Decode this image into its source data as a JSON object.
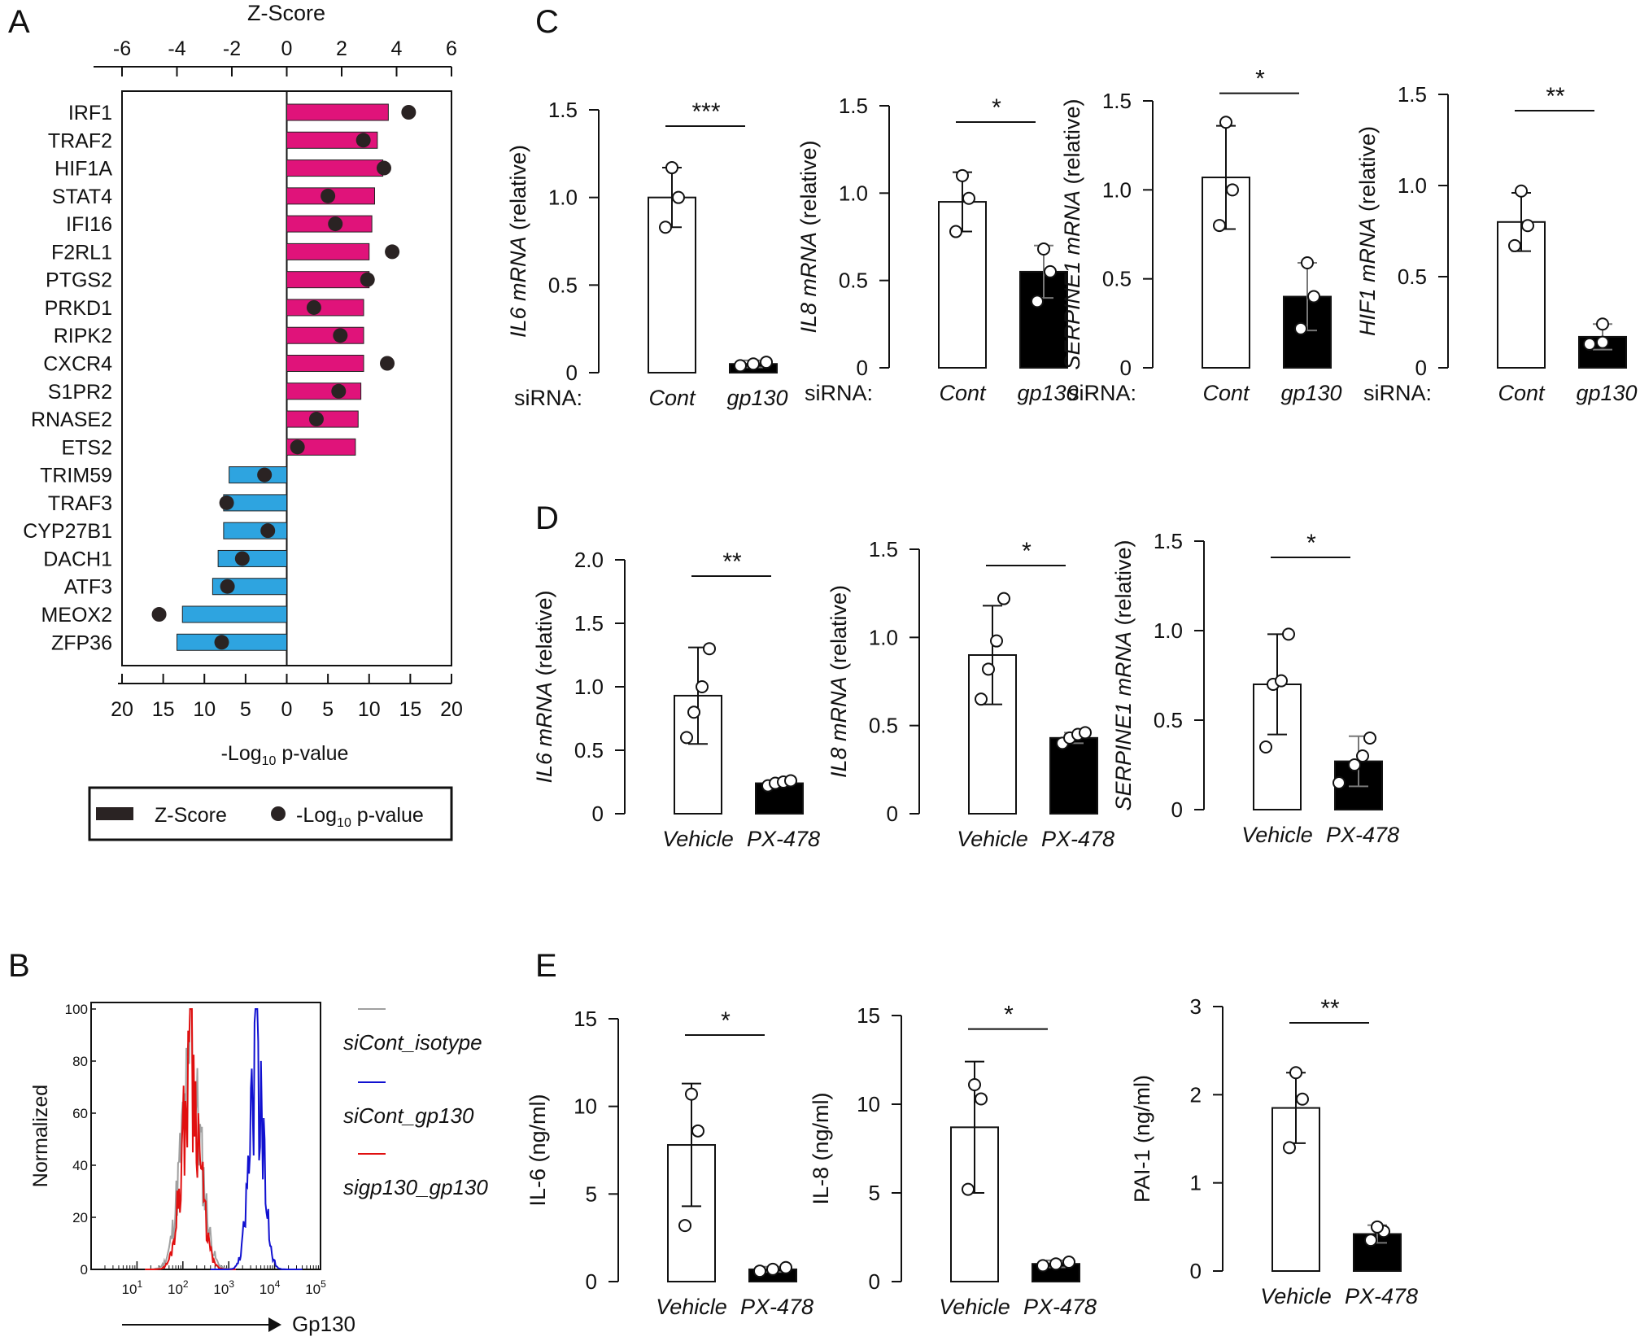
{
  "panels": {
    "A": "A",
    "B": "B",
    "C": "C",
    "D": "D",
    "E": "E"
  },
  "chart_data": [
    {
      "id": "A",
      "type": "bar",
      "orientation": "horizontal",
      "top_axis_title": "Z-Score",
      "top_ticks": [
        "-6",
        "-4",
        "-2",
        "0",
        "2",
        "4",
        "6"
      ],
      "bottom_ticks": [
        "20",
        "15",
        "10",
        "5",
        "0",
        "5",
        "10",
        "15",
        "20"
      ],
      "xlabel_main": "-Log",
      "xlabel_sub": "10",
      "xlabel_tail": " p-value",
      "legend": {
        "bar_label": "Z-Score",
        "dot_label_main": "-Log",
        "dot_label_sub": "10",
        "dot_label_tail": " p-value",
        "placement": "bottom"
      },
      "colors": {
        "positive": "#e0137a",
        "negative": "#2ea4e0",
        "dot": "#2a2323"
      },
      "categories": [
        "IRF1",
        "TRAF2",
        "HIF1A",
        "STAT4",
        "IFI16",
        "F2RL1",
        "PTGS2",
        "PRKD1",
        "RIPK2",
        "CXCR4",
        "S1PR2",
        "RNASE2",
        "ETS2",
        "TRIM59",
        "TRAF3",
        "CYP27B1",
        "DACH1",
        "ATF3",
        "MEOX2",
        "ZFP36"
      ],
      "series": [
        {
          "name": "Z-Score",
          "values": [
            3.7,
            3.3,
            3.5,
            3.2,
            3.1,
            3.0,
            3.0,
            2.8,
            2.8,
            2.8,
            2.7,
            2.6,
            2.5,
            -2.1,
            -2.3,
            -2.3,
            -2.5,
            -2.7,
            -3.8,
            -4.0
          ]
        },
        {
          "name": "-Log10 p-value",
          "values": [
            14.8,
            9.3,
            11.8,
            5.0,
            5.9,
            12.8,
            9.8,
            3.3,
            6.5,
            12.2,
            6.3,
            3.6,
            1.3,
            2.7,
            7.3,
            2.3,
            5.4,
            7.2,
            15.5,
            7.9
          ]
        }
      ],
      "zlim": [
        -6,
        6
      ],
      "plim": [
        -20,
        20
      ]
    },
    {
      "id": "B",
      "type": "line",
      "ylabel": "Normalized",
      "xlabel": "Gp130",
      "y_ticks": [
        "100",
        "80",
        "60",
        "40",
        "20",
        "0"
      ],
      "x_ticks": [
        {
          "base": "10",
          "exp": "1"
        },
        {
          "base": "10",
          "exp": "2"
        },
        {
          "base": "10",
          "exp": "3"
        },
        {
          "base": "10",
          "exp": "4"
        },
        {
          "base": "10",
          "exp": "5"
        }
      ],
      "x_scale": "log",
      "legend": [
        {
          "name": "siCont_isotype",
          "color": "#a0a0a0"
        },
        {
          "name": "siCont_gp130",
          "color": "#1010d0"
        },
        {
          "name": "sigp130_gp130",
          "color": "#e01010"
        }
      ],
      "series": [
        {
          "name": "siCont_isotype",
          "peak_x": 150,
          "peak_y": 100
        },
        {
          "name": "siCont_gp130",
          "peak_x": 4000,
          "peak_y": 100
        },
        {
          "name": "sigp130_gp130",
          "peak_x": 150,
          "peak_y": 100
        }
      ],
      "xlim": [
        1,
        100000
      ],
      "ylim": [
        0,
        100
      ]
    },
    {
      "id": "C1",
      "type": "bar",
      "ylabel": "IL6 mRNA (relative)",
      "ylabel_italic": "IL6 mRNA",
      "ylabel_tail": " (relative)",
      "group_label": "siRNA:",
      "categories": [
        "Cont",
        "gp130"
      ],
      "cat_italic": true,
      "values": [
        1.0,
        0.05
      ],
      "errors": [
        0.17,
        0.02
      ],
      "points": [
        [
          0.83,
          1.0,
          1.17
        ],
        [
          0.04,
          0.05,
          0.06
        ]
      ],
      "y_ticks": [
        "0",
        "0.5",
        "1.0",
        "1.5"
      ],
      "ylim": [
        0,
        1.5
      ],
      "significance": "***"
    },
    {
      "id": "C2",
      "type": "bar",
      "ylabel": "IL8 mRNA (relative)",
      "ylabel_italic": "IL8 mRNA",
      "ylabel_tail": " (relative)",
      "group_label": "siRNA:",
      "categories": [
        "Cont",
        "gp130"
      ],
      "cat_italic": true,
      "values": [
        0.95,
        0.55
      ],
      "errors": [
        0.17,
        0.15
      ],
      "points": [
        [
          0.78,
          0.97,
          1.1
        ],
        [
          0.38,
          0.55,
          0.68
        ]
      ],
      "y_ticks": [
        "0",
        "0.5",
        "1.0",
        "1.5"
      ],
      "ylim": [
        0,
        1.5
      ],
      "significance": "*"
    },
    {
      "id": "C3",
      "type": "bar",
      "ylabel": "SERPINE1 mRNA (relative)",
      "ylabel_italic": "SERPINE1 mRNA",
      "ylabel_tail": " (relative)",
      "group_label": "siRNA:",
      "categories": [
        "Cont",
        "gp130"
      ],
      "cat_italic": true,
      "values": [
        1.07,
        0.4
      ],
      "errors": [
        0.29,
        0.19
      ],
      "points": [
        [
          0.8,
          1.0,
          1.38
        ],
        [
          0.22,
          0.4,
          0.59
        ]
      ],
      "y_ticks": [
        "0",
        "0.5",
        "1.0",
        "1.5"
      ],
      "ylim": [
        0,
        1.5
      ],
      "significance": "*"
    },
    {
      "id": "C4",
      "type": "bar",
      "ylabel": "HIF1 mRNA (relative)",
      "ylabel_italic": "HIF1 mRNA",
      "ylabel_tail": " (relative)",
      "group_label": "siRNA:",
      "categories": [
        "Cont",
        "gp130"
      ],
      "cat_italic": true,
      "values": [
        0.8,
        0.17
      ],
      "errors": [
        0.16,
        0.07
      ],
      "points": [
        [
          0.67,
          0.78,
          0.97
        ],
        [
          0.13,
          0.14,
          0.24
        ]
      ],
      "y_ticks": [
        "0",
        "0.5",
        "1.0",
        "1.5"
      ],
      "ylim": [
        0,
        1.5
      ],
      "significance": "**"
    },
    {
      "id": "D1",
      "type": "bar",
      "ylabel": "IL6 mRNA (relative)",
      "ylabel_italic": "IL6 mRNA",
      "ylabel_tail": " (relative)",
      "categories": [
        "Vehicle",
        "PX-478"
      ],
      "cat_italic": true,
      "values": [
        0.93,
        0.24
      ],
      "errors": [
        0.38,
        0.02
      ],
      "points": [
        [
          0.6,
          0.8,
          1.0,
          1.3
        ],
        [
          0.22,
          0.24,
          0.25,
          0.26
        ]
      ],
      "y_ticks": [
        "0",
        "0.5",
        "1.0",
        "1.5",
        "2.0"
      ],
      "ylim": [
        0,
        2.0
      ],
      "significance": "**"
    },
    {
      "id": "D2",
      "type": "bar",
      "ylabel": "IL8 mRNA (relative)",
      "ylabel_italic": "IL8 mRNA",
      "ylabel_tail": " (relative)",
      "categories": [
        "Vehicle",
        "PX-478"
      ],
      "cat_italic": true,
      "values": [
        0.9,
        0.43
      ],
      "errors": [
        0.28,
        0.03
      ],
      "points": [
        [
          0.65,
          0.82,
          0.98,
          1.22
        ],
        [
          0.4,
          0.43,
          0.45,
          0.46
        ]
      ],
      "y_ticks": [
        "0",
        "0.5",
        "1.0",
        "1.5"
      ],
      "ylim": [
        0,
        1.5
      ],
      "significance": "*"
    },
    {
      "id": "D3",
      "type": "bar",
      "ylabel": "SERPINE1 mRNA (relative)",
      "ylabel_italic": "SERPINE1 mRNA",
      "ylabel_tail": " (relative)",
      "categories": [
        "Vehicle",
        "PX-478"
      ],
      "cat_italic": true,
      "values": [
        0.7,
        0.27
      ],
      "errors": [
        0.28,
        0.14
      ],
      "points": [
        [
          0.35,
          0.7,
          0.72,
          0.98
        ],
        [
          0.15,
          0.25,
          0.3,
          0.4
        ]
      ],
      "y_ticks": [
        "0",
        "0.5",
        "1.0",
        "1.5"
      ],
      "ylim": [
        0,
        1.5
      ],
      "significance": "*"
    },
    {
      "id": "E1",
      "type": "bar",
      "ylabel": "IL-6 (ng/ml)",
      "categories": [
        "Vehicle",
        "PX-478"
      ],
      "cat_italic": true,
      "values": [
        7.8,
        0.7
      ],
      "errors": [
        3.5,
        0.15
      ],
      "points": [
        [
          3.2,
          8.6,
          10.7
        ],
        [
          0.6,
          0.7,
          0.8
        ]
      ],
      "y_ticks": [
        "0",
        "5",
        "10",
        "15"
      ],
      "ylim": [
        0,
        15
      ],
      "significance": "*"
    },
    {
      "id": "E2",
      "type": "bar",
      "ylabel": "IL-8 (ng/ml)",
      "categories": [
        "Vehicle",
        "PX-478"
      ],
      "cat_italic": true,
      "values": [
        8.7,
        1.0
      ],
      "errors": [
        3.7,
        0.2
      ],
      "points": [
        [
          5.2,
          10.3,
          11.1
        ],
        [
          0.9,
          1.0,
          1.1
        ]
      ],
      "y_ticks": [
        "0",
        "5",
        "10",
        "15"
      ],
      "ylim": [
        0,
        15
      ],
      "significance": "*"
    },
    {
      "id": "E3",
      "type": "bar",
      "ylabel": "PAI-1 (ng/ml)",
      "categories": [
        "Vehicle",
        "PX-478"
      ],
      "cat_italic": true,
      "values": [
        1.85,
        0.42
      ],
      "errors": [
        0.4,
        0.1
      ],
      "points": [
        [
          1.4,
          1.95,
          2.25
        ],
        [
          0.35,
          0.45,
          0.5
        ]
      ],
      "y_ticks": [
        "0",
        "1",
        "2",
        "3"
      ],
      "ylim": [
        0,
        3
      ],
      "significance": "**"
    }
  ]
}
